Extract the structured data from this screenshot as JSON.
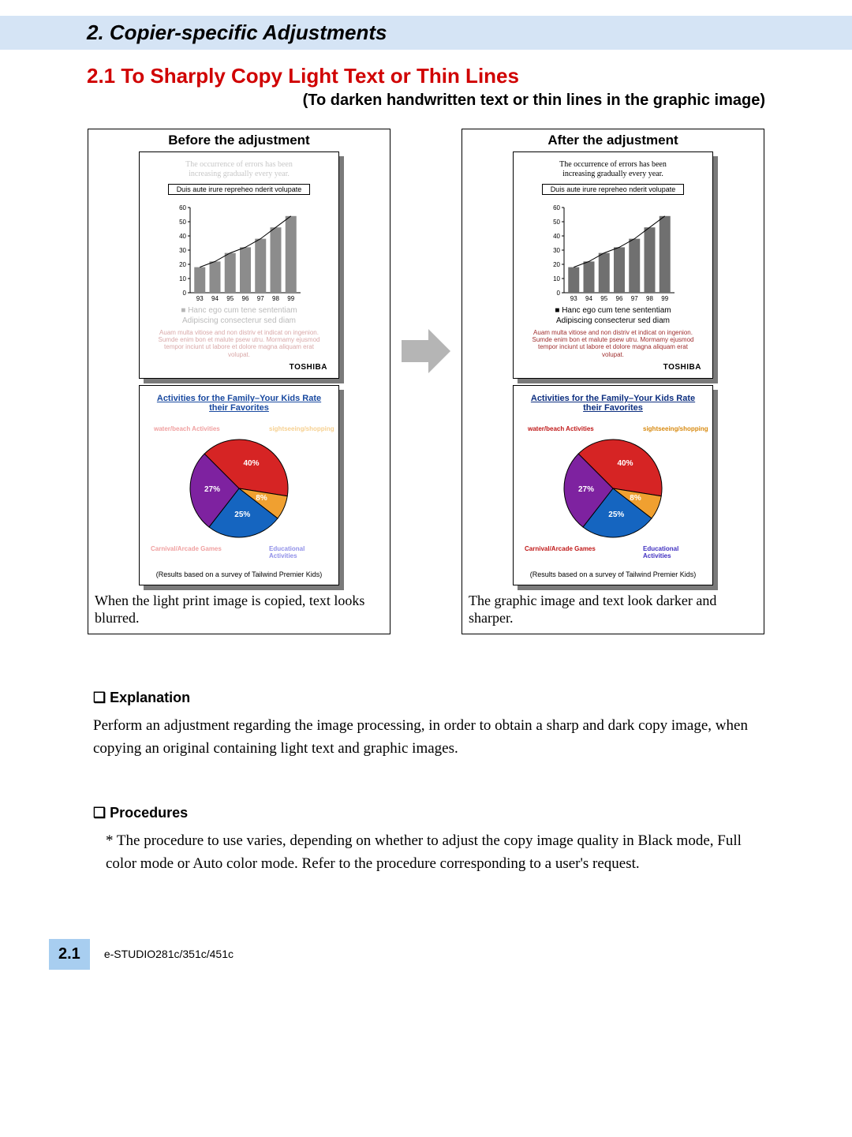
{
  "chapter": {
    "title": "2. Copier-specific Adjustments"
  },
  "section": {
    "title": "2.1 To Sharply Copy Light Text or Thin Lines",
    "subtitle": "(To darken handwritten text or thin lines in the graphic image)"
  },
  "arrow": {
    "fill": "#b5b5b5",
    "width": 62,
    "height": 64
  },
  "before": {
    "label": "Before the adjustment",
    "handwritten_color": "#c8c8c8",
    "handwritten_line1": "The occurrence of errors has been",
    "handwritten_line2": "increasing gradually every year.",
    "caption_box": "Duis aute irure repreheo nderit volupate",
    "brand": "TOSHIBA",
    "bullet_color": "#bfbfbf",
    "bullet_line1": "■ Hanc ego cum tene sententiam",
    "bullet_line2": "Adipiscing consecterur sed diam",
    "lorem_color": "#d9a8a8",
    "lorem": "Auam multa vitiose and non distriv et indicat on ingenion. Sumde enim bon et malute psew utru. Mormamy ejusmod tempor inciunt ut labore et dolore magna aliquam erat volupat.",
    "chart": {
      "y_ticks": [
        0,
        10,
        20,
        30,
        40,
        50,
        60
      ],
      "x_labels": [
        "93",
        "94",
        "95",
        "96",
        "97",
        "98",
        "99"
      ],
      "bars": [
        18,
        22,
        28,
        32,
        38,
        46,
        54
      ],
      "bar_fill": "#8c8c8c",
      "axis_color": "#000000",
      "curve_color": "#000000"
    },
    "pie": {
      "title": "Activities for the Family–Your Kids Rate their Favorites",
      "title_color": "#1a4aa0",
      "label_tl": "water/beach Activities",
      "label_tl_color": "#f0a0a0",
      "label_tr": "sightseeing/shopping",
      "label_tr_color": "#f6d090",
      "label_bl": "Carnival/Arcade Games",
      "label_bl_color": "#f0a0a0",
      "label_br": "Educational Activities",
      "label_br_color": "#9090e8",
      "survey": "(Results based on a survey of Tailwind Premier Kids)",
      "slices": [
        {
          "pct": "40%",
          "color": "#d62424"
        },
        {
          "pct": "8%",
          "color": "#f0a030"
        },
        {
          "pct": "25%",
          "color": "#1565c0"
        },
        {
          "pct": "27%",
          "color": "#7e22a0"
        }
      ]
    },
    "result": "When the light print image is copied, text looks blurred."
  },
  "after": {
    "label": "After the adjustment",
    "handwritten_color": "#000000",
    "handwritten_line1": "The occurrence of errors has been",
    "handwritten_line2": "increasing gradually every year.",
    "caption_box": "Duis aute irure repreheo nderit volupate",
    "brand": "TOSHIBA",
    "bullet_color": "#000000",
    "bullet_line1": "■ Hanc ego cum tene sententiam",
    "bullet_line2": "Adipiscing consecterur sed diam",
    "lorem_color": "#a03030",
    "lorem": "Auam multa vitiose and non distriv et indicat on ingenion. Sumde enim bon et malute psew utru. Mormamy ejusmod tempor inciunt ut labore et dolore magna aliquam erat volupat.",
    "chart": {
      "y_ticks": [
        0,
        10,
        20,
        30,
        40,
        50,
        60
      ],
      "x_labels": [
        "93",
        "94",
        "95",
        "96",
        "97",
        "98",
        "99"
      ],
      "bars": [
        18,
        22,
        28,
        32,
        38,
        46,
        54
      ],
      "bar_fill": "#707070",
      "axis_color": "#000000",
      "curve_color": "#000000"
    },
    "pie": {
      "title": "Activities for the Family–Your Kids Rate their Favorites",
      "title_color": "#0d2f80",
      "label_tl": "water/beach Activities",
      "label_tl_color": "#c01818",
      "label_tr": "sightseeing/shopping",
      "label_tr_color": "#d88a10",
      "label_bl": "Carnival/Arcade Games",
      "label_bl_color": "#c01818",
      "label_br": "Educational Activities",
      "label_br_color": "#4030c0",
      "survey": "(Results based on a survey of Tailwind Premier Kids)",
      "slices": [
        {
          "pct": "40%",
          "color": "#d62424"
        },
        {
          "pct": "8%",
          "color": "#f0a030"
        },
        {
          "pct": "25%",
          "color": "#1565c0"
        },
        {
          "pct": "27%",
          "color": "#7e22a0"
        }
      ]
    },
    "result": "The graphic image and text look darker and sharper."
  },
  "explanation": {
    "head": "Explanation",
    "text": "Perform an adjustment regarding the image processing, in order to obtain a sharp and dark copy image, when copying an original containing light text and graphic images."
  },
  "procedures": {
    "head": "Procedures",
    "text": "* The procedure to use varies, depending on whether to adjust the copy image quality in Black mode, Full color mode or Auto color mode.  Refer to the procedure corresponding to a user's request."
  },
  "footer": {
    "badge": "2.1",
    "model": "e-STUDIO281c/351c/451c"
  }
}
